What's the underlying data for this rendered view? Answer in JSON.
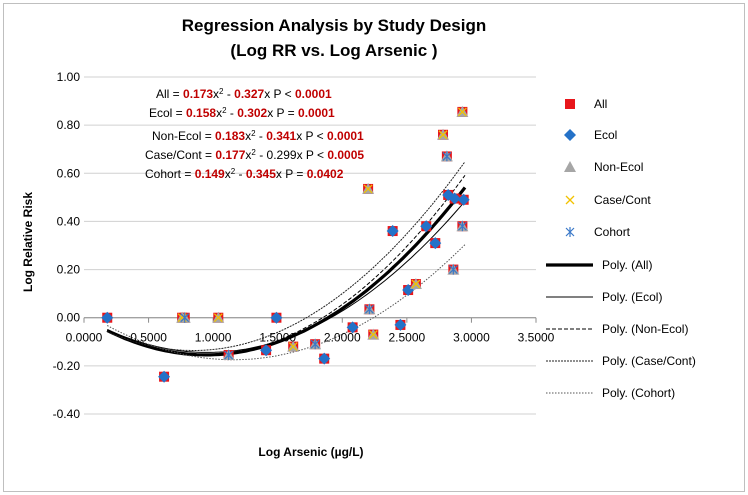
{
  "chart_data": {
    "type": "scatter",
    "title": "Regression Analysis by Study Design",
    "subtitle": "(Log RR vs. Log Arsenic )",
    "xlabel": "Log Arsenic (µg/L)",
    "ylabel": "Log Relative Risk",
    "xlim": [
      0,
      3.5
    ],
    "ylim": [
      -0.4,
      1.0
    ],
    "x_ticks": [
      "0.0000",
      "0.5000",
      "1.0000",
      "1.5000",
      "2.0000",
      "2.5000",
      "3.0000",
      "3.5000"
    ],
    "y_ticks": [
      "-0.40",
      "-0.20",
      "0.00",
      "0.20",
      "0.40",
      "0.60",
      "0.80",
      "1.00"
    ],
    "grid": "horizontal",
    "legend_position": "right",
    "series": [
      {
        "name": "All",
        "marker": "square",
        "color": "#e8161b",
        "points": [
          [
            0.18,
            0.0
          ],
          [
            0.62,
            -0.245
          ],
          [
            0.76,
            0.0
          ],
          [
            0.78,
            0.0
          ],
          [
            1.04,
            0.0
          ],
          [
            1.12,
            -0.155
          ],
          [
            1.41,
            -0.135
          ],
          [
            1.49,
            0.0
          ],
          [
            1.62,
            -0.12
          ],
          [
            1.79,
            -0.11
          ],
          [
            1.86,
            -0.17
          ],
          [
            2.08,
            -0.04
          ],
          [
            2.2,
            0.535
          ],
          [
            2.21,
            0.035
          ],
          [
            2.24,
            -0.07
          ],
          [
            2.39,
            0.36
          ],
          [
            2.45,
            -0.03
          ],
          [
            2.51,
            0.115
          ],
          [
            2.57,
            0.14
          ],
          [
            2.65,
            0.38
          ],
          [
            2.72,
            0.31
          ],
          [
            2.78,
            0.76
          ],
          [
            2.81,
            0.67
          ],
          [
            2.82,
            0.51
          ],
          [
            2.86,
            0.2
          ],
          [
            2.87,
            0.495
          ],
          [
            2.93,
            0.38
          ],
          [
            2.93,
            0.855
          ],
          [
            2.94,
            0.49
          ]
        ]
      },
      {
        "name": "Ecol",
        "marker": "diamond",
        "color": "#2472c8",
        "points": [
          [
            0.18,
            0.0
          ],
          [
            0.62,
            -0.245
          ],
          [
            1.41,
            -0.135
          ],
          [
            1.49,
            0.0
          ],
          [
            1.86,
            -0.17
          ],
          [
            2.08,
            -0.04
          ],
          [
            2.39,
            0.36
          ],
          [
            2.45,
            -0.03
          ],
          [
            2.51,
            0.115
          ],
          [
            2.65,
            0.38
          ],
          [
            2.72,
            0.31
          ],
          [
            2.82,
            0.51
          ],
          [
            2.87,
            0.495
          ],
          [
            2.94,
            0.49
          ]
        ]
      },
      {
        "name": "Non-Ecol",
        "marker": "triangle",
        "color": "#a6a6a6",
        "points": [
          [
            0.76,
            0.0
          ],
          [
            0.78,
            0.0
          ],
          [
            1.04,
            0.0
          ],
          [
            1.12,
            -0.155
          ],
          [
            1.62,
            -0.12
          ],
          [
            1.79,
            -0.11
          ],
          [
            2.2,
            0.535
          ],
          [
            2.21,
            0.035
          ],
          [
            2.24,
            -0.07
          ],
          [
            2.57,
            0.14
          ],
          [
            2.78,
            0.76
          ],
          [
            2.81,
            0.67
          ],
          [
            2.86,
            0.2
          ],
          [
            2.93,
            0.38
          ],
          [
            2.93,
            0.855
          ]
        ]
      },
      {
        "name": "Case/Cont",
        "marker": "x",
        "color": "#f2c200",
        "points": [
          [
            0.76,
            0.0
          ],
          [
            1.04,
            0.0
          ],
          [
            1.62,
            -0.12
          ],
          [
            2.2,
            0.535
          ],
          [
            2.24,
            -0.07
          ],
          [
            2.57,
            0.14
          ],
          [
            2.78,
            0.76
          ],
          [
            2.93,
            0.855
          ]
        ]
      },
      {
        "name": "Cohort",
        "marker": "asterisk",
        "color": "#3a78c8",
        "points": [
          [
            0.78,
            0.0
          ],
          [
            1.12,
            -0.155
          ],
          [
            1.79,
            -0.11
          ],
          [
            2.21,
            0.035
          ],
          [
            2.81,
            0.67
          ],
          [
            2.86,
            0.2
          ],
          [
            2.93,
            0.38
          ]
        ]
      }
    ],
    "trendlines": [
      {
        "name": "Poly. (All)",
        "a": 0.173,
        "b": -0.327,
        "c": 0.0,
        "style": "thick"
      },
      {
        "name": "Poly. (Ecol)",
        "a": 0.158,
        "b": -0.302,
        "c": 0.0,
        "style": "solid"
      },
      {
        "name": "Poly. (Non-Ecol)",
        "a": 0.183,
        "b": -0.341,
        "c": 0.005,
        "style": "dashed"
      },
      {
        "name": "Poly. (Case/Cont)",
        "a": 0.177,
        "b": -0.299,
        "c": -0.01,
        "style": "dashed-dark"
      },
      {
        "name": "Poly. (Cohort)",
        "a": 0.149,
        "b": -0.345,
        "c": 0.025,
        "style": "dotted"
      }
    ],
    "trend_xrange": [
      0.18,
      2.95
    ],
    "annotations": [
      {
        "name": "All",
        "pad": "      ",
        "op": "=",
        "a": "0.173",
        "b": "0.327",
        "sign": "-",
        "bcolor": "red",
        "pop": "<",
        "p": "0.0001"
      },
      {
        "name": "Ecol",
        "pad": "",
        "op": "=",
        "a": "0.158",
        "b": "0.302",
        "sign": "-",
        "bcolor": "red",
        "pop": "=",
        "p": "0.0001"
      },
      {
        "name": "Non-Ecol",
        "pad": "",
        "op": "=",
        "a": "0.183",
        "b": "0.341",
        "sign": "-",
        "bcolor": "red",
        "pop": "<",
        "p": "0.0001"
      },
      {
        "name": "Case/Cont",
        "pad": "",
        "op": "=",
        "a": "0.177",
        "b": "0.299",
        "sign": "-",
        "bcolor": "black",
        "pop": "<",
        "p": "0.0005"
      },
      {
        "name": "Cohort",
        "pad": "",
        "op": "=",
        "a": "0.149",
        "b": "0.345",
        "sign": "-",
        "bcolor": "red",
        "pop": "=",
        "p": "0.0402"
      }
    ]
  }
}
